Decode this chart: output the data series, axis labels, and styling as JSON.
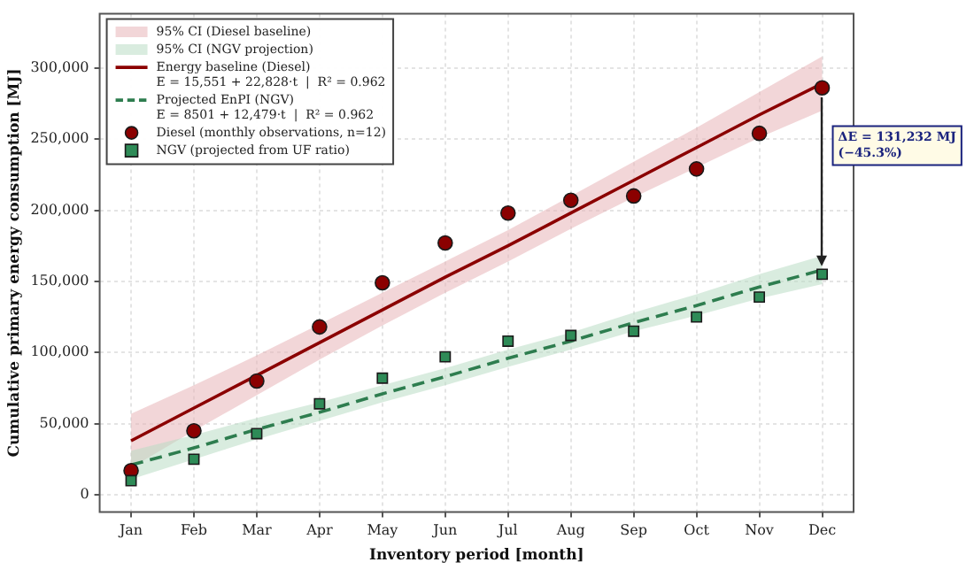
{
  "chart_data": {
    "type": "scatter",
    "xlabel": "Inventory period [month]",
    "ylabel": "Cumulative primary energy consumption [MJ]",
    "categories": [
      "Jan",
      "Feb",
      "Mar",
      "Apr",
      "May",
      "Jun",
      "Jul",
      "Aug",
      "Sep",
      "Oct",
      "Nov",
      "Dec"
    ],
    "ylim": [
      -12000,
      338000
    ],
    "yticks": [
      {
        "value": 0,
        "label": "0"
      },
      {
        "value": 50000,
        "label": "50,000"
      },
      {
        "value": 100000,
        "label": "100,000"
      },
      {
        "value": 150000,
        "label": "150,000"
      },
      {
        "value": 200000,
        "label": "200,000"
      },
      {
        "value": 250000,
        "label": "250,000"
      },
      {
        "value": 300000,
        "label": "300,000"
      }
    ],
    "grid": true,
    "legend": "top left",
    "series": [
      {
        "type": "area",
        "name": "95% CI (Diesel baseline)",
        "color": "#e8b4b8",
        "values": [
          null,
          null,
          null,
          null,
          null,
          null,
          null,
          null,
          null,
          null,
          null,
          null
        ]
      },
      {
        "type": "area",
        "name": "95% CI (NGV projection)",
        "color": "#b9dcc4",
        "values": [
          null,
          null,
          null,
          null,
          null,
          null,
          null,
          null,
          null,
          null,
          null,
          null
        ]
      },
      {
        "type": "line",
        "name": "Energy baseline (Diesel)\nE = 15,551 + 22,828·t  |  R² = 0.962",
        "color": "#8b0000",
        "line_style": "solid",
        "values": [
          38000,
          61000,
          84000,
          107000,
          130000,
          153000,
          175000,
          198000,
          221000,
          244000,
          267000,
          289000
        ],
        "lower": [
          19000,
          45000,
          70000,
          95000,
          119000,
          142000,
          164000,
          187000,
          209000,
          230000,
          251000,
          270000
        ],
        "upper": [
          57000,
          77000,
          98000,
          120000,
          142000,
          164000,
          186000,
          210000,
          234000,
          258000,
          283000,
          308000
        ]
      },
      {
        "type": "line",
        "name": "Projected EnPI (NGV)\nE = 8501 + 12,479·t  |  R² = 0.962",
        "color": "#2e7d4f",
        "line_style": "dashed",
        "values": [
          21000,
          33000,
          46000,
          58000,
          71000,
          83000,
          96000,
          108000,
          121000,
          133000,
          146000,
          158000
        ],
        "lower": [
          11000,
          25000,
          39000,
          52000,
          65000,
          77000,
          90000,
          102000,
          115000,
          126000,
          138000,
          148000
        ],
        "upper": [
          31000,
          42000,
          54000,
          65000,
          77000,
          89000,
          102000,
          114000,
          128000,
          141000,
          155000,
          168000
        ]
      },
      {
        "type": "scatter",
        "name": "Diesel (monthly observations, n=12)",
        "color": "#8b0000",
        "marker": "circle",
        "values": [
          17000,
          45000,
          80000,
          118000,
          149000,
          177000,
          198000,
          207000,
          210000,
          229000,
          254000,
          286000
        ]
      },
      {
        "type": "scatter",
        "name": "NGV (projected from UF ratio)",
        "color": "#2e8b57",
        "marker": "square",
        "values": [
          10000,
          25000,
          43000,
          64000,
          82000,
          97000,
          108000,
          112000,
          115000,
          125000,
          139000,
          155000
        ]
      }
    ],
    "annotations": [
      "ΔE = 131,232 MJ\n(−45.3%)"
    ]
  }
}
